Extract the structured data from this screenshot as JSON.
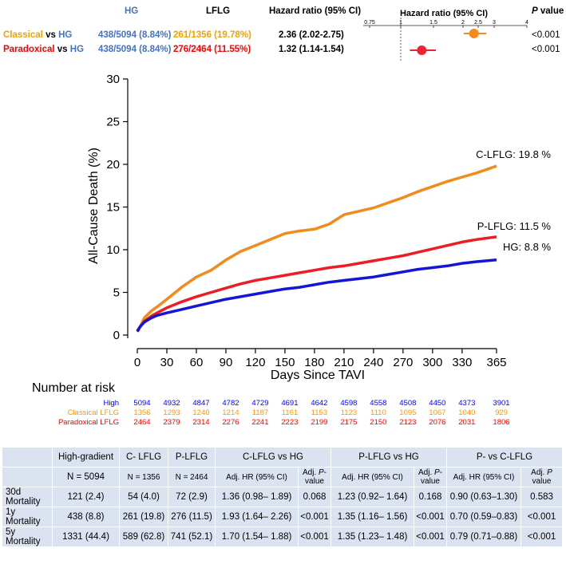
{
  "forest": {
    "headers": {
      "hg": "HG",
      "lflg": "LFLG",
      "hr": "Hazard ratio (95% CI)",
      "plot_title": "Hazard ratio (95% CI)",
      "p_italic": "P",
      "p_rest": " value"
    },
    "axis_ticks": [
      "0.75",
      "1",
      "1.5",
      "2",
      "2.5",
      "3",
      "4"
    ],
    "rows": [
      {
        "label_a": "Classical",
        "label_vs": " vs ",
        "label_b": "HG",
        "hg": "438/5094 (8.84%)",
        "lflg": "261/1356 (19.78%)",
        "hr_text": "2.36 (2.02-2.75)",
        "hr": 2.36,
        "lo": 2.02,
        "hi": 2.75,
        "p": "<0.001",
        "color": "#f28a1e"
      },
      {
        "label_a": "Paradoxical",
        "label_vs": " vs ",
        "label_b": "HG",
        "hg": "438/5094 (8.84%)",
        "lflg": "276/2464 (11.55%)",
        "hr_text": "1.32 (1.14-1.54)",
        "hr": 1.32,
        "lo": 1.14,
        "hi": 1.54,
        "p": "<0.001",
        "color": "#ee2233"
      }
    ]
  },
  "chart_data": {
    "type": "line",
    "xlabel": "Days Since TAVI",
    "ylabel": "All-Cause Death (%)",
    "xlim": [
      0,
      365
    ],
    "ylim": [
      0,
      30
    ],
    "x_ticks": [
      0,
      30,
      60,
      90,
      120,
      150,
      180,
      210,
      240,
      270,
      300,
      330,
      365
    ],
    "y_ticks": [
      0,
      5,
      10,
      15,
      20,
      25,
      30
    ],
    "grid": false,
    "series": [
      {
        "name": "C-LFLG",
        "label": "C-LFLG: 19.8 %",
        "color": "#f28a1e",
        "x": [
          0,
          3,
          7,
          14,
          20,
          30,
          45,
          60,
          75,
          90,
          105,
          120,
          135,
          150,
          165,
          180,
          195,
          210,
          225,
          240,
          255,
          270,
          285,
          300,
          315,
          330,
          345,
          365
        ],
        "y": [
          0.5,
          1.0,
          2.0,
          2.8,
          3.3,
          4.2,
          5.6,
          6.8,
          7.6,
          8.8,
          9.8,
          10.5,
          11.2,
          11.9,
          12.2,
          12.4,
          13.0,
          14.1,
          14.5,
          14.9,
          15.5,
          16.1,
          16.8,
          17.4,
          18.0,
          18.5,
          19.0,
          19.8
        ]
      },
      {
        "name": "P-LFLG",
        "label": "P-LFLG: 11.5 %",
        "color": "#ee1c24",
        "x": [
          0,
          3,
          7,
          14,
          20,
          30,
          45,
          60,
          75,
          90,
          105,
          120,
          135,
          150,
          165,
          180,
          195,
          210,
          225,
          240,
          255,
          270,
          285,
          300,
          315,
          330,
          345,
          365
        ],
        "y": [
          0.5,
          1.0,
          1.6,
          2.2,
          2.6,
          3.2,
          3.9,
          4.5,
          5.0,
          5.5,
          6.0,
          6.4,
          6.7,
          7.0,
          7.3,
          7.6,
          7.9,
          8.1,
          8.4,
          8.7,
          9.0,
          9.3,
          9.7,
          10.1,
          10.5,
          10.9,
          11.2,
          11.5
        ]
      },
      {
        "name": "HG",
        "label": "HG: 8.8 %",
        "color": "#1515d8",
        "x": [
          0,
          3,
          7,
          14,
          20,
          30,
          45,
          60,
          75,
          90,
          105,
          120,
          135,
          150,
          165,
          180,
          195,
          210,
          225,
          240,
          255,
          270,
          285,
          300,
          315,
          330,
          345,
          365
        ],
        "y": [
          0.4,
          1.0,
          1.5,
          2.0,
          2.3,
          2.6,
          3.0,
          3.4,
          3.8,
          4.2,
          4.5,
          4.8,
          5.1,
          5.4,
          5.6,
          5.9,
          6.2,
          6.4,
          6.6,
          6.8,
          7.1,
          7.4,
          7.7,
          7.9,
          8.1,
          8.4,
          8.6,
          8.8
        ]
      }
    ]
  },
  "risk": {
    "title": "Number at risk",
    "rows": [
      {
        "label": "High",
        "cls": "blue",
        "values": [
          "5094",
          "4932",
          "4847",
          "4782",
          "4729",
          "4691",
          "4642",
          "4598",
          "4558",
          "4508",
          "4450",
          "4373",
          "3901"
        ]
      },
      {
        "label": "Classical LFLG",
        "cls": "orange",
        "values": [
          "1356",
          "1293",
          "1240",
          "1214",
          "1187",
          "1161",
          "1153",
          "1123",
          "1110",
          "1095",
          "1067",
          "1040",
          "929"
        ]
      },
      {
        "label": "Paradoxical LFLG",
        "cls": "red",
        "values": [
          "2464",
          "2379",
          "2314",
          "2276",
          "2241",
          "2223",
          "2199",
          "2175",
          "2150",
          "2123",
          "2076",
          "2031",
          "1806"
        ]
      }
    ]
  },
  "table": {
    "head1": [
      "High-gradient",
      "C- LFLG",
      "P-LFLG",
      "C-LFLG vs HG",
      "P-LFLG vs HG",
      "P- vs C-LFLG"
    ],
    "head2": {
      "n_hg": "N = 5094",
      "n_c": "N = 1356",
      "n_p": "N = 2464",
      "adj_hr": "Adj. HR (95% CI)",
      "adj_p_a": "Adj. ",
      "adj_p_b": "P",
      "adj_p_c": "-",
      "adj_p_d": "value",
      "adj_p_full_a": "Adj. ",
      "adj_p_full_b": "P",
      "adj_p_full_c": " value"
    },
    "rows": [
      {
        "label_a": "30d",
        "label_b": "Mortality",
        "hg": "121 (2.4)",
        "c": "54 (4.0)",
        "p": "72 (2.9)",
        "hr1": "1.36 (0.98– 1.89)",
        "p1": "0.068",
        "hr2": "1.23 (0.92– 1.64)",
        "p2": "0.168",
        "hr3": "0.90 (0.63–1.30)",
        "p3": "0.583"
      },
      {
        "label_a": "1y",
        "label_b": "Mortality",
        "hg": "438 (8.8)",
        "c": "261 (19.8)",
        "p": "276 (11.5)",
        "hr1": "1.93 (1.64– 2.26)",
        "p1": "<0.001",
        "hr2": "1.35 (1.16– 1.56)",
        "p2": "<0.001",
        "hr3": "0.70 (0.59–0.83)",
        "p3": "<0.001"
      },
      {
        "label_a": "5y",
        "label_b": "Mortality",
        "hg": "1331 (44.4)",
        "c": "589 (62.8)",
        "p": "741 (52.1)",
        "hr1": "1.70 (1.54– 1.88)",
        "p1": "<0.001",
        "hr2": "1.35 (1.23– 1.48)",
        "p2": "<0.001",
        "hr3": "0.79 (0.71–0.88)",
        "p3": "<0.001"
      }
    ]
  }
}
